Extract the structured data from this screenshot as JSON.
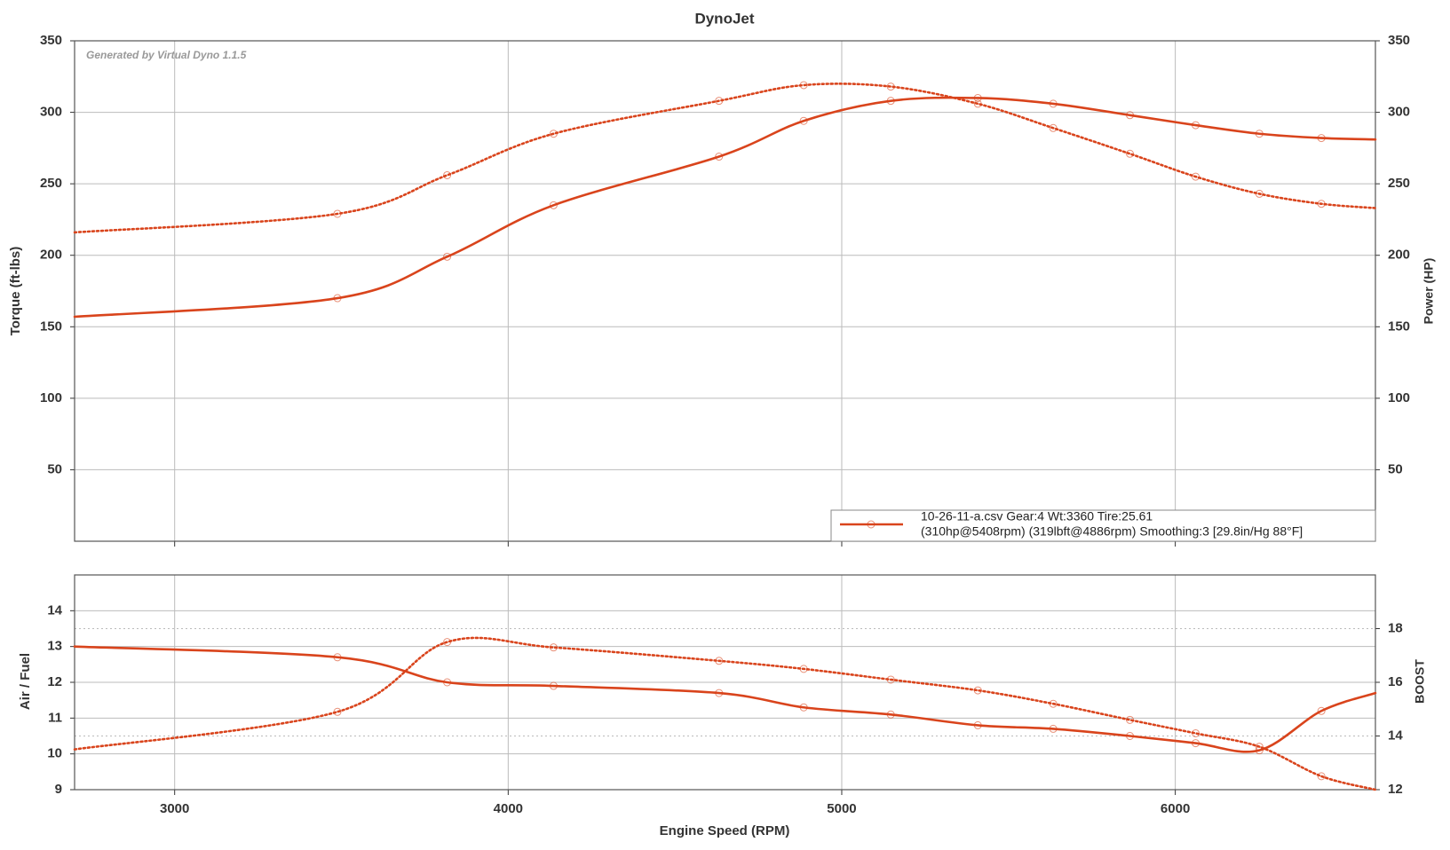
{
  "chart_data": [
    {
      "type": "line",
      "title": "DynoJet",
      "annotation": "Generated by Virtual Dyno 1.1.5",
      "y_label": "Torque (ft-lbs)",
      "y2_label": "Power (HP)",
      "x": [
        2700,
        3488,
        3817,
        4136,
        4632,
        4886,
        5147,
        5408,
        5634,
        5864,
        6061,
        6252,
        6438,
        6600
      ],
      "xlim": [
        2700,
        6600
      ],
      "ylim": [
        0,
        350
      ],
      "yticks": [
        50,
        100,
        150,
        200,
        250,
        300,
        350
      ],
      "y2lim": [
        0,
        350
      ],
      "y2ticks": [
        50,
        100,
        150,
        200,
        250,
        300,
        350
      ],
      "grid": true,
      "legend_position": "lower right",
      "legend_text": [
        "10-26-11-a.csv Gear:4 Wt:3360 Tire:25.61",
        "(310hp@5408rpm) (319lbft@4886rpm) Smoothing:3 [29.8in/Hg 88°F]"
      ],
      "series": [
        {
          "color": "#d9441c",
          "style": "dotted",
          "values": [
            216,
            229,
            256,
            285,
            308,
            319,
            318,
            306,
            289,
            271,
            255,
            243,
            236,
            233
          ]
        },
        {
          "color": "#d9441c",
          "style": "solid",
          "axis": "y2",
          "values": [
            157,
            170,
            199,
            235,
            269,
            294,
            308,
            310,
            306,
            298,
            291,
            285,
            282,
            281
          ]
        }
      ]
    },
    {
      "type": "line",
      "x_label": "Engine Speed (RPM)",
      "y_label": "Air / Fuel",
      "y2_label": "BOOST",
      "x": [
        2700,
        3488,
        3817,
        4136,
        4632,
        4886,
        5147,
        5408,
        5634,
        5864,
        6061,
        6252,
        6438,
        6600
      ],
      "xlim": [
        2700,
        6600
      ],
      "xticks": [
        3000,
        4000,
        5000,
        6000
      ],
      "ylim": [
        9,
        15
      ],
      "yticks": [
        9,
        10,
        11,
        12,
        13,
        14
      ],
      "y2lim": [
        12,
        20
      ],
      "y2ticks": [
        12,
        14,
        16,
        18
      ],
      "grid": true,
      "series": [
        {
          "color": "#d9441c",
          "style": "solid",
          "values": [
            13.0,
            12.7,
            12.0,
            11.9,
            11.7,
            11.3,
            11.1,
            10.8,
            10.7,
            10.5,
            10.3,
            10.1,
            11.2,
            11.7
          ]
        },
        {
          "color": "#d9441c",
          "style": "dotted",
          "axis": "y2",
          "values": [
            13.5,
            14.9,
            17.5,
            17.3,
            16.8,
            16.5,
            16.1,
            15.7,
            15.2,
            14.6,
            14.1,
            13.6,
            12.5,
            12.0
          ]
        }
      ]
    }
  ]
}
